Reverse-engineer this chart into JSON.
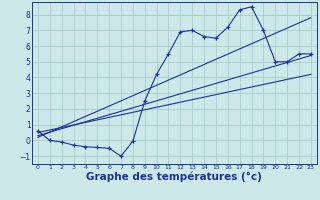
{
  "background_color": "#cce8e8",
  "grid_color": "#aacccc",
  "line_color": "#1a3399",
  "xlabel": "Graphe des températures (°c)",
  "xlabel_fontsize": 7.5,
  "ylim": [
    -1.5,
    8.8
  ],
  "xlim": [
    -0.5,
    23.5
  ],
  "yticks": [
    -1,
    0,
    1,
    2,
    3,
    4,
    5,
    6,
    7,
    8
  ],
  "xticks": [
    0,
    1,
    2,
    3,
    4,
    5,
    6,
    7,
    8,
    9,
    10,
    11,
    12,
    13,
    14,
    15,
    16,
    17,
    18,
    19,
    20,
    21,
    22,
    23
  ],
  "curve1_x": [
    0,
    1,
    2,
    3,
    4,
    5,
    6,
    7,
    8,
    9,
    10,
    11,
    12,
    13,
    14,
    15,
    16,
    17,
    18,
    19,
    20,
    21,
    22,
    23
  ],
  "curve1_y": [
    0.6,
    0.0,
    -0.1,
    -0.3,
    -0.4,
    -0.45,
    -0.5,
    -1.0,
    -0.05,
    2.5,
    4.2,
    5.5,
    6.9,
    7.0,
    6.6,
    6.5,
    7.2,
    8.3,
    8.5,
    7.0,
    5.0,
    5.0,
    5.5,
    5.5
  ],
  "trend1_x": [
    0,
    23
  ],
  "trend1_y": [
    0.5,
    4.2
  ],
  "trend2_x": [
    0,
    23
  ],
  "trend2_y": [
    0.3,
    5.4
  ],
  "trend3_x": [
    0,
    23
  ],
  "trend3_y": [
    0.2,
    7.8
  ]
}
